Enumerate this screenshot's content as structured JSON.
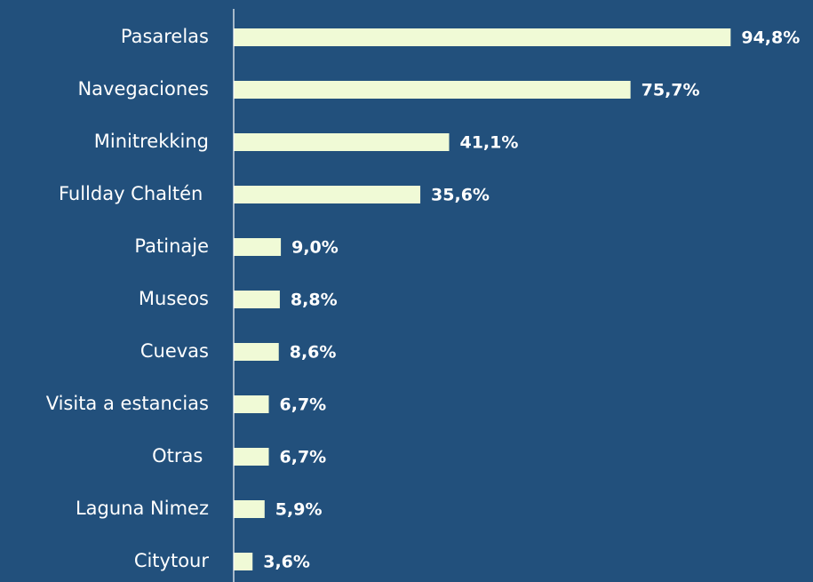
{
  "chart_data": {
    "type": "bar",
    "orientation": "horizontal",
    "categories": [
      "Pasarelas",
      "Navegaciones",
      "Minitrekking",
      "Fullday Chaltén ",
      "Patinaje",
      "Museos",
      "Cuevas",
      "Visita a estancias",
      "Otras ",
      "Laguna Nimez",
      "Citytour"
    ],
    "values": [
      94.8,
      75.7,
      41.1,
      35.6,
      9.0,
      8.8,
      8.6,
      6.7,
      6.7,
      5.9,
      3.6
    ],
    "value_labels": [
      "94,8%",
      "75,7%",
      "41,1%",
      "35,6%",
      "9,0%",
      "8,8%",
      "8,6%",
      "6,7%",
      "6,7%",
      "5,9%",
      "3,6%"
    ],
    "color": "#f0fad6",
    "xlim": [
      0,
      100
    ]
  }
}
